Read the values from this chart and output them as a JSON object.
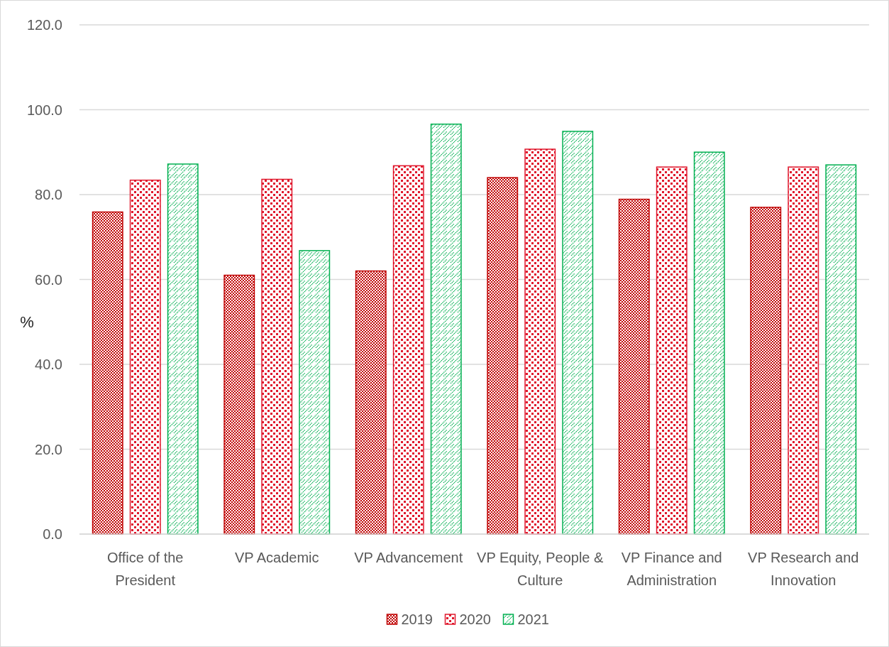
{
  "chart_data": {
    "type": "bar",
    "ylabel": "%",
    "categories": [
      "Office of the President",
      "VP Academic",
      "VP Advancement",
      "VP Equity, People & Culture",
      "VP Finance and Administration",
      "VP Research and Innovation"
    ],
    "series": [
      {
        "name": "2019",
        "color": "#c00000",
        "values": [
          75.9,
          61.0,
          62.0,
          84.0,
          78.9,
          77.0
        ]
      },
      {
        "name": "2020",
        "color": "#e0182d",
        "values": [
          83.4,
          83.6,
          86.8,
          90.7,
          86.5,
          86.5
        ]
      },
      {
        "name": "2021",
        "color": "#00b050",
        "values": [
          87.2,
          66.8,
          96.6,
          94.9,
          90.0,
          87.0
        ]
      }
    ],
    "ylim": [
      0,
      120
    ],
    "yticks": [
      {
        "value": 0,
        "label": "0.0"
      },
      {
        "value": 20,
        "label": "20.0"
      },
      {
        "value": 40,
        "label": "40.0"
      },
      {
        "value": 60,
        "label": "60.0"
      },
      {
        "value": 80,
        "label": "80.0"
      },
      {
        "value": 100,
        "label": "100.0"
      },
      {
        "value": 120,
        "label": "120.0"
      }
    ],
    "grid": "y",
    "legend": "bottom"
  }
}
